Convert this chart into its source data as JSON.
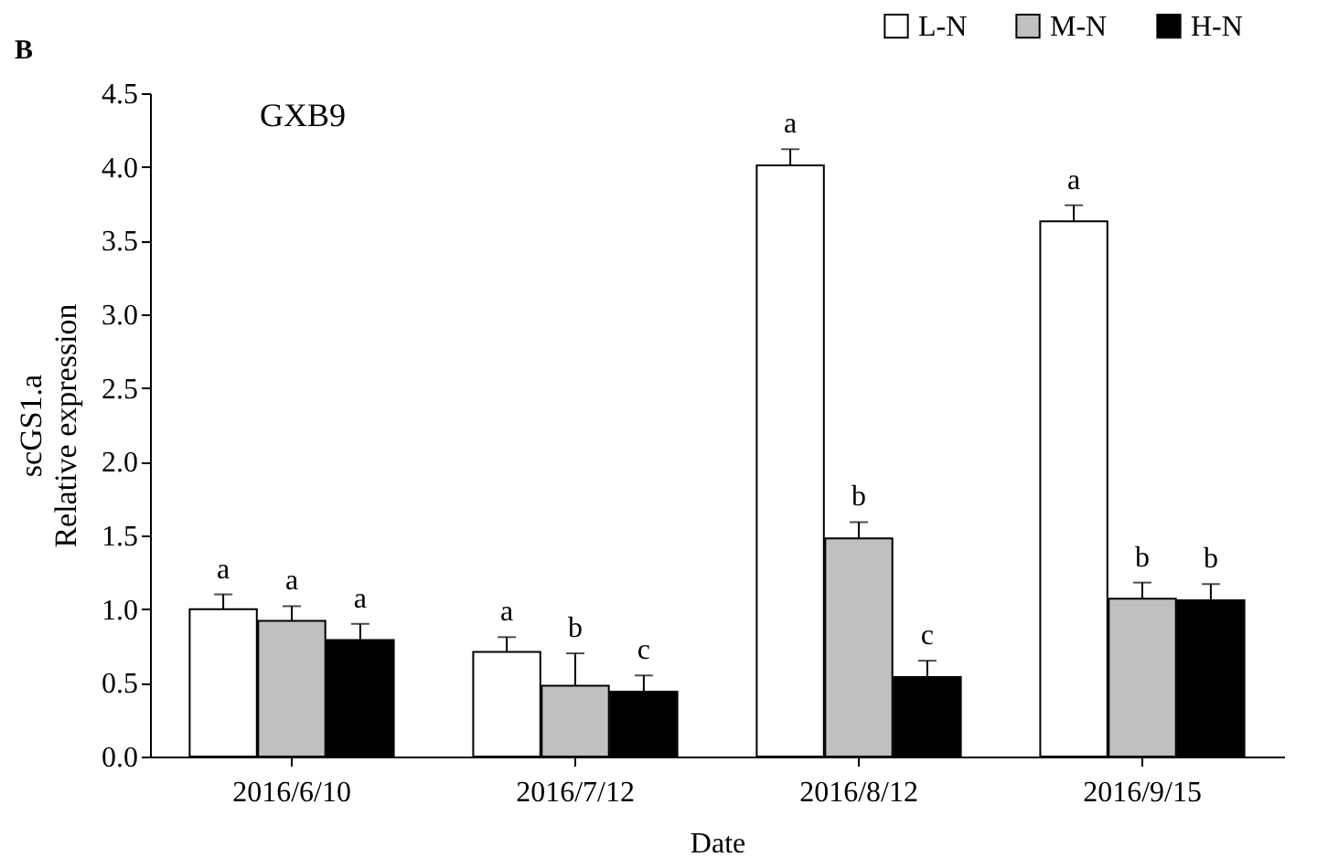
{
  "chart_data": {
    "type": "bar",
    "title": "B",
    "ylabel": [
      "scGS1.a",
      "Relative expression"
    ],
    "xlabel": "Date",
    "categories": [
      "2016/6/10",
      "2016/7/12",
      "2016/8/12",
      "2016/9/15"
    ],
    "series": [
      {
        "name": "L-N",
        "color": "#ffffff",
        "values": [
          1.0,
          0.71,
          4.01,
          3.63
        ],
        "errors": [
          0.1,
          0.1,
          0.11,
          0.11
        ],
        "value_labels": [
          "a",
          "a",
          "a",
          "a"
        ]
      },
      {
        "name": "M-N",
        "color": "#c0c0c0",
        "values": [
          0.92,
          0.48,
          1.48,
          1.07
        ],
        "errors": [
          0.1,
          0.22,
          0.11,
          0.11
        ],
        "value_labels": [
          "a",
          "b",
          "b",
          "b"
        ]
      },
      {
        "name": "H-N",
        "color": "#000000",
        "values": [
          0.79,
          0.44,
          0.54,
          1.06
        ],
        "errors": [
          0.11,
          0.11,
          0.11,
          0.11
        ],
        "value_labels": [
          "a",
          "c",
          "c",
          "b"
        ]
      }
    ],
    "ylim": [
      0,
      4.5
    ],
    "yticks": [
      {
        "value": 0,
        "label": "0.0"
      },
      {
        "value": 0.5,
        "label": "0.5"
      },
      {
        "value": 1,
        "label": "1.0"
      },
      {
        "value": 1.5,
        "label": "1.5"
      },
      {
        "value": 2,
        "label": "2.0"
      },
      {
        "value": 2.5,
        "label": "2.5"
      },
      {
        "value": 3,
        "label": "3.0"
      },
      {
        "value": 3.5,
        "label": "3.5"
      },
      {
        "value": 4,
        "label": "4.0"
      },
      {
        "value": 4.5,
        "label": "4.5"
      }
    ],
    "annotations": [
      "GXB9"
    ],
    "grid": false,
    "legend": "top right"
  }
}
